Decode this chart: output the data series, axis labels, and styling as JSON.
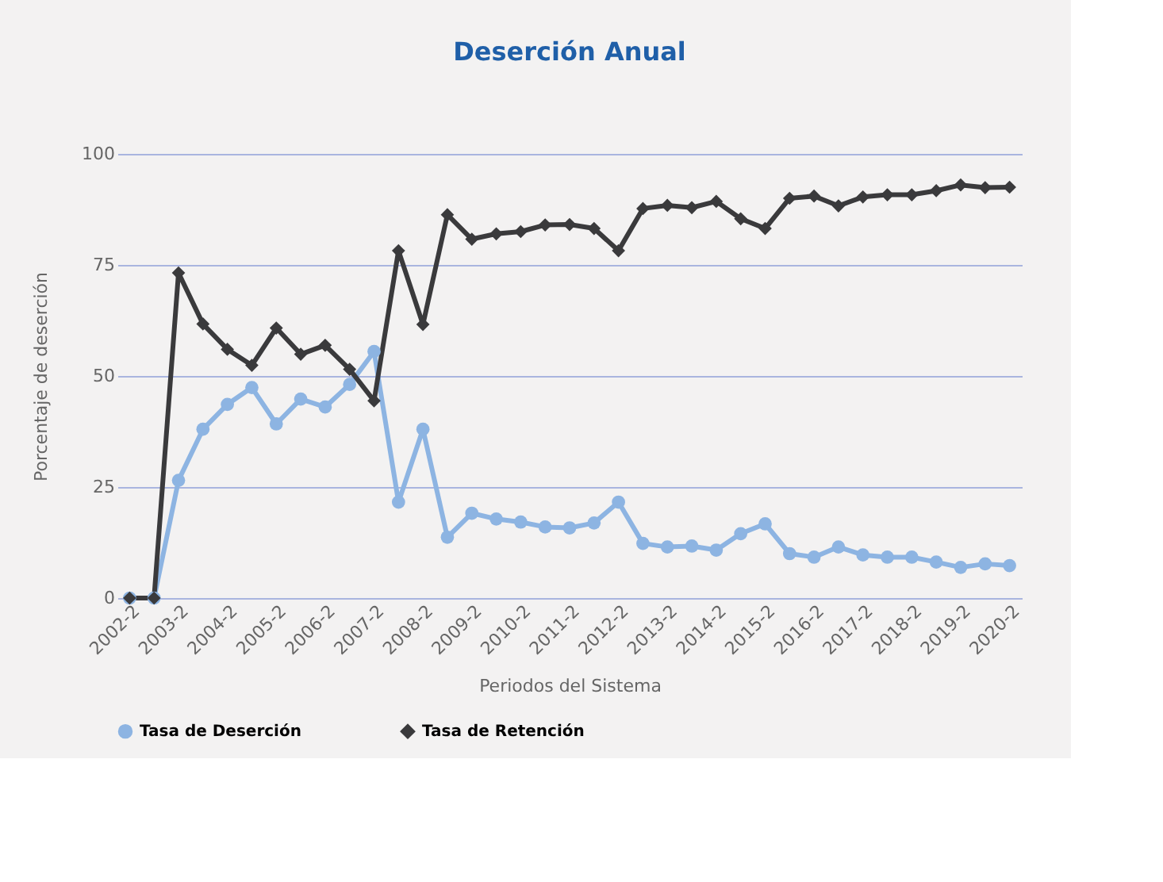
{
  "chart_data": {
    "type": "line",
    "title": "Deserción Anual",
    "xlabel": "Periodos del Sistema",
    "ylabel": "Porcentaje de deserción",
    "categories": [
      "2002-2",
      null,
      "2003-2",
      null,
      "2004-2",
      null,
      "2005-2",
      null,
      "2006-2",
      null,
      "2007-2",
      null,
      "2008-2",
      null,
      "2009-2",
      null,
      "2010-2",
      null,
      "2011-2",
      null,
      "2012-2",
      null,
      "2013-2",
      null,
      "2014-2",
      null,
      "2015-2",
      null,
      "2016-2",
      null,
      "2017-2",
      null,
      "2018-2",
      null,
      "2019-2",
      null,
      "2020-2"
    ],
    "series": [
      {
        "name": "Tasa de Deserción",
        "color": "#8db4e2",
        "marker": "circle",
        "values": [
          0,
          0,
          26.5,
          38,
          43.6,
          47.4,
          39.2,
          44.8,
          43,
          48.1,
          55.5,
          21.6,
          38,
          13.7,
          19.1,
          17.8,
          17.1,
          16,
          15.8,
          16.9,
          21.6,
          12.3,
          11.5,
          11.7,
          10.8,
          14.5,
          16.7,
          10,
          9.2,
          11.5,
          9.7,
          9.2,
          9.2,
          8.1,
          6.9,
          7.7,
          7.3
        ]
      },
      {
        "name": "Tasa de Retención",
        "color": "#3a3a3c",
        "marker": "diamond",
        "values": [
          0,
          0,
          73.2,
          61.7,
          56,
          52.4,
          60.8,
          54.9,
          56.9,
          51.5,
          44.4,
          78.2,
          61.6,
          86.3,
          80.8,
          82,
          82.5,
          84,
          84.1,
          83.2,
          78.2,
          87.7,
          88.4,
          87.9,
          89.3,
          85.4,
          83.2,
          90,
          90.5,
          88.3,
          90.3,
          90.8,
          90.8,
          91.7,
          93,
          92.4,
          92.5
        ]
      }
    ],
    "ylim": [
      0,
      100
    ],
    "yticks": [
      0,
      25,
      50,
      75,
      100
    ],
    "grid": "y",
    "legend": "bottom",
    "line_style": "solid"
  }
}
